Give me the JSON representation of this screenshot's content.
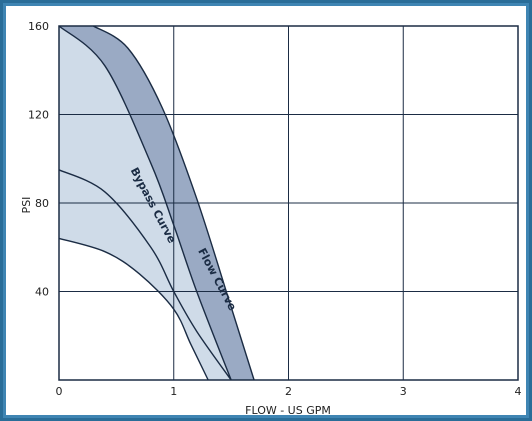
{
  "chart_data": {
    "type": "area",
    "xlabel": "FLOW - US GPM",
    "ylabel": "PSI",
    "xlim": [
      0,
      4
    ],
    "ylim": [
      0,
      160
    ],
    "x_ticks": [
      "0",
      "1",
      "2",
      "3",
      "4"
    ],
    "y_ticks": [
      "40",
      "80",
      "120",
      "160"
    ],
    "grid": true,
    "series": [
      {
        "name": "Flow Curve",
        "x": [
          0.3,
          0.6,
          0.9,
          1.2,
          1.5,
          1.7
        ],
        "y": [
          160,
          150,
          123,
          82,
          33,
          0
        ]
      },
      {
        "name": "Bypass Curve",
        "x": [
          0.0,
          0.4,
          0.8,
          1.0,
          1.2,
          1.5
        ],
        "y": [
          160,
          142,
          98,
          70,
          40,
          0
        ]
      },
      {
        "x": [
          0.0,
          0.4,
          0.8,
          1.0,
          1.2,
          1.5
        ],
        "y": [
          95,
          85,
          60,
          40,
          22,
          0
        ]
      },
      {
        "x": [
          0.0,
          0.4,
          0.7,
          1.0,
          1.15,
          1.3
        ],
        "y": [
          64,
          58,
          48,
          32,
          16,
          0
        ]
      }
    ],
    "colors": {
      "flow_band": "#9aaac4",
      "bypass_region": "#cfdbe8",
      "lines": "#1b2c44",
      "grid": "#1b2c44"
    }
  }
}
